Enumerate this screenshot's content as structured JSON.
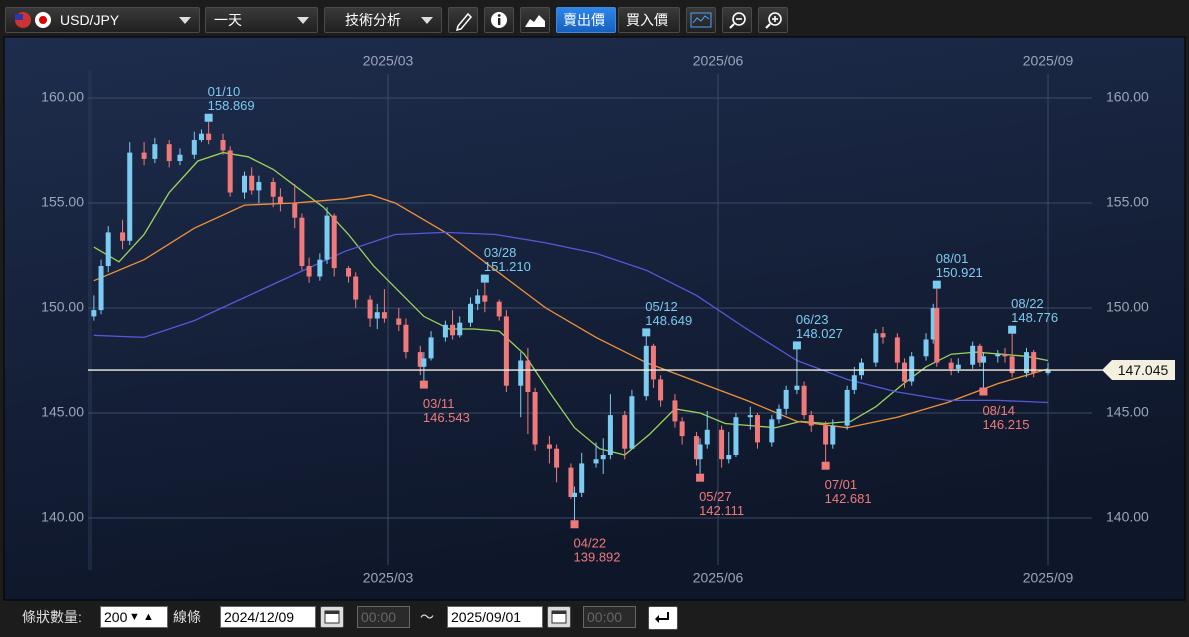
{
  "toolbar": {
    "symbol": "USD/JPY",
    "period": "一天",
    "analysis": "技術分析",
    "sell": "賣出價",
    "buy": "買入價"
  },
  "chart_data": {
    "type": "candlestick",
    "x": [
      "2024/12/09",
      "2024/12/11",
      "2024/12/13",
      "2024/12/17",
      "2024/12/19",
      "2024/12/23",
      "2024/12/26",
      "2024/12/30",
      "2025/01/02",
      "2025/01/06",
      "2025/01/08",
      "2025/01/10",
      "2025/01/14",
      "2025/01/16",
      "2025/01/20",
      "2025/01/22",
      "2025/01/24",
      "2025/01/28",
      "2025/01/30",
      "2025/02/03",
      "2025/02/05",
      "2025/02/07",
      "2025/02/10",
      "2025/02/12",
      "2025/02/14",
      "2025/02/18",
      "2025/02/20",
      "2025/02/24",
      "2025/02/26",
      "2025/02/28",
      "2025/03/04",
      "2025/03/06",
      "2025/03/10",
      "2025/03/11",
      "2025/03/13",
      "2025/03/17",
      "2025/03/19",
      "2025/03/21",
      "2025/03/24",
      "2025/03/26",
      "2025/03/28",
      "2025/04/01",
      "2025/04/03",
      "2025/04/07",
      "2025/04/09",
      "2025/04/11",
      "2025/04/15",
      "2025/04/17",
      "2025/04/21",
      "2025/04/22",
      "2025/04/24",
      "2025/04/28",
      "2025/04/30",
      "2025/05/02",
      "2025/05/06",
      "2025/05/08",
      "2025/05/12",
      "2025/05/14",
      "2025/05/16",
      "2025/05/20",
      "2025/05/22",
      "2025/05/26",
      "2025/05/27",
      "2025/05/29",
      "2025/06/02",
      "2025/06/04",
      "2025/06/06",
      "2025/06/10",
      "2025/06/12",
      "2025/06/16",
      "2025/06/18",
      "2025/06/20",
      "2025/06/23",
      "2025/06/25",
      "2025/06/27",
      "2025/07/01",
      "2025/07/03",
      "2025/07/07",
      "2025/07/09",
      "2025/07/11",
      "2025/07/15",
      "2025/07/17",
      "2025/07/21",
      "2025/07/23",
      "2025/07/25",
      "2025/07/29",
      "2025/07/31",
      "2025/08/01",
      "2025/08/05",
      "2025/08/07",
      "2025/08/11",
      "2025/08/13",
      "2025/08/14",
      "2025/08/18",
      "2025/08/20",
      "2025/08/22",
      "2025/08/26",
      "2025/08/28",
      "2025/09/01"
    ],
    "open": [
      149.6,
      149.9,
      152.0,
      153.6,
      153.2,
      157.4,
      157.1,
      157.8,
      157.0,
      157.3,
      158.0,
      158.3,
      158.0,
      157.5,
      155.5,
      156.3,
      155.6,
      156.0,
      155.3,
      155.0,
      154.3,
      152.0,
      151.5,
      152.3,
      154.4,
      151.9,
      151.5,
      150.4,
      149.5,
      149.8,
      149.5,
      149.2,
      147.9,
      147.2,
      147.6,
      148.6,
      149.2,
      148.7,
      149.3,
      150.2,
      150.6,
      150.3,
      149.6,
      146.3,
      147.5,
      146.0,
      143.5,
      143.3,
      142.4,
      141.0,
      141.2,
      142.6,
      142.8,
      143.0,
      144.9,
      143.3,
      145.8,
      148.2,
      146.6,
      145.6,
      144.6,
      143.9,
      142.8,
      143.5,
      144.2,
      142.8,
      143.0,
      144.8,
      144.9,
      143.6,
      144.7,
      145.2,
      146.1,
      146.3,
      144.9,
      144.4,
      143.5,
      144.4,
      146.1,
      146.8,
      147.4,
      148.8,
      148.6,
      147.4,
      146.5,
      147.7,
      148.5,
      150.0,
      147.4,
      147.1,
      147.3,
      148.2,
      147.4,
      147.7,
      147.8,
      147.7,
      146.9,
      147.9,
      146.9
    ],
    "high": [
      150.6,
      152.3,
      153.9,
      154.2,
      157.9,
      157.9,
      158.1,
      158.0,
      157.6,
      158.4,
      158.5,
      158.869,
      158.3,
      157.7,
      156.5,
      156.7,
      156.3,
      156.2,
      155.7,
      155.9,
      154.5,
      152.4,
      152.6,
      154.8,
      154.5,
      152.0,
      151.7,
      150.6,
      150.2,
      150.9,
      150.0,
      149.5,
      148.2,
      147.9,
      148.9,
      149.4,
      149.9,
      149.6,
      150.5,
      150.9,
      151.21,
      150.4,
      149.9,
      147.9,
      148.1,
      146.2,
      143.9,
      143.5,
      142.6,
      141.5,
      143.1,
      143.6,
      143.8,
      145.9,
      145.1,
      146.1,
      148.649,
      148.3,
      146.8,
      145.9,
      144.8,
      144.1,
      143.8,
      145.1,
      144.4,
      144.1,
      145.0,
      145.3,
      145.0,
      144.9,
      145.4,
      146.3,
      148.027,
      146.5,
      145.1,
      144.6,
      144.7,
      146.3,
      147.2,
      147.6,
      149.0,
      149.1,
      148.8,
      147.6,
      147.9,
      148.8,
      150.2,
      150.921,
      147.6,
      147.6,
      148.4,
      148.3,
      147.9,
      148.0,
      148.1,
      148.776,
      148.1,
      148.0,
      147.4
    ],
    "low": [
      149.4,
      149.7,
      151.7,
      152.8,
      153.0,
      156.8,
      156.9,
      156.7,
      156.8,
      157.1,
      157.9,
      157.8,
      157.3,
      155.3,
      155.2,
      155.4,
      155.0,
      154.8,
      154.6,
      153.8,
      151.8,
      151.2,
      151.3,
      152.1,
      151.5,
      151.2,
      150.0,
      149.1,
      149.0,
      149.3,
      148.9,
      147.6,
      146.8,
      146.543,
      147.5,
      148.4,
      148.5,
      148.6,
      149.1,
      149.9,
      149.8,
      149.4,
      146.0,
      144.8,
      144.0,
      143.2,
      142.6,
      141.7,
      140.9,
      139.892,
      141.0,
      142.4,
      142.1,
      142.8,
      142.8,
      143.3,
      145.6,
      146.2,
      145.3,
      144.3,
      143.5,
      142.5,
      142.111,
      143.3,
      142.4,
      142.6,
      142.9,
      144.2,
      143.3,
      143.4,
      144.5,
      144.9,
      145.9,
      144.7,
      144.1,
      142.681,
      143.3,
      144.2,
      145.9,
      146.6,
      147.2,
      148.3,
      147.1,
      146.2,
      146.3,
      147.5,
      148.3,
      147.2,
      146.8,
      146.9,
      147.1,
      147.2,
      146.215,
      147.4,
      147.4,
      146.7,
      146.7,
      146.7,
      146.8
    ],
    "close": [
      149.9,
      152.0,
      153.6,
      153.2,
      157.4,
      157.1,
      157.8,
      157.0,
      157.3,
      158.0,
      158.3,
      158.0,
      157.5,
      155.5,
      156.3,
      155.6,
      156.0,
      155.3,
      155.0,
      154.3,
      152.0,
      151.5,
      152.3,
      154.4,
      151.9,
      151.5,
      150.4,
      149.5,
      149.8,
      149.5,
      149.2,
      147.9,
      147.2,
      147.6,
      148.6,
      149.2,
      148.7,
      149.3,
      150.2,
      150.6,
      150.3,
      149.6,
      146.3,
      147.5,
      146.0,
      143.5,
      143.3,
      142.4,
      141.0,
      141.2,
      142.6,
      142.8,
      143.0,
      144.9,
      143.3,
      145.8,
      148.2,
      146.6,
      145.6,
      144.6,
      143.9,
      142.8,
      143.5,
      144.2,
      142.8,
      143.0,
      144.8,
      144.9,
      143.6,
      144.7,
      145.2,
      146.1,
      146.3,
      144.9,
      144.4,
      143.5,
      144.4,
      146.1,
      146.8,
      147.4,
      148.8,
      148.6,
      147.4,
      146.5,
      147.7,
      148.5,
      150.0,
      147.4,
      147.1,
      147.3,
      148.2,
      147.4,
      147.7,
      147.8,
      147.7,
      146.9,
      147.9,
      146.9,
      147.045
    ],
    "up_color": "#7ccbf0",
    "down_color": "#f07a7a",
    "ylim": [
      137.5,
      161.5
    ],
    "yticks": [
      {
        "value": 140,
        "label": "140.00"
      },
      {
        "value": 145,
        "label": "145.00"
      },
      {
        "value": 150,
        "label": "150.00"
      },
      {
        "value": 155,
        "label": "155.00"
      },
      {
        "value": 160,
        "label": "160.00"
      }
    ],
    "xticks": [
      {
        "value": "2025/03/01",
        "label": "2025/03"
      },
      {
        "value": "2025/06/01",
        "label": "2025/06"
      },
      {
        "value": "2025/09/01",
        "label": "2025/09"
      }
    ],
    "grid": true,
    "moving_averages": [
      {
        "color": "#9bd35a",
        "x": [
          "2024/12/09",
          "2024/12/16",
          "2024/12/23",
          "2024/12/30",
          "2025/01/07",
          "2025/01/14",
          "2025/01/21",
          "2025/01/28",
          "2025/02/04",
          "2025/02/11",
          "2025/02/18",
          "2025/02/25",
          "2025/03/04",
          "2025/03/11",
          "2025/03/18",
          "2025/03/25",
          "2025/04/01",
          "2025/04/08",
          "2025/04/15",
          "2025/04/22",
          "2025/04/29",
          "2025/05/06",
          "2025/05/13",
          "2025/05/20",
          "2025/05/27",
          "2025/06/03",
          "2025/06/10",
          "2025/06/17",
          "2025/06/24",
          "2025/07/01",
          "2025/07/08",
          "2025/07/15",
          "2025/07/22",
          "2025/07/29",
          "2025/08/05",
          "2025/08/12",
          "2025/08/19",
          "2025/08/26",
          "2025/09/01"
        ],
        "values": [
          152.9,
          152.2,
          153.5,
          155.5,
          157.0,
          157.4,
          157.2,
          156.6,
          155.7,
          154.8,
          153.5,
          152.0,
          150.8,
          149.6,
          149.0,
          149.0,
          148.9,
          147.8,
          146.0,
          144.3,
          143.3,
          143.0,
          144.0,
          145.2,
          145.0,
          144.5,
          144.4,
          144.3,
          144.6,
          144.5,
          144.6,
          145.3,
          146.3,
          147.2,
          147.8,
          147.9,
          147.8,
          147.7,
          147.5
        ]
      },
      {
        "color": "#f0923a",
        "x": [
          "2024/12/09",
          "2024/12/23",
          "2025/01/06",
          "2025/01/20",
          "2025/02/03",
          "2025/02/17",
          "2025/02/24",
          "2025/03/03",
          "2025/03/17",
          "2025/03/31",
          "2025/04/14",
          "2025/04/28",
          "2025/05/12",
          "2025/05/26",
          "2025/06/09",
          "2025/06/23",
          "2025/07/07",
          "2025/07/21",
          "2025/08/04",
          "2025/08/18",
          "2025/09/01"
        ],
        "values": [
          151.3,
          152.3,
          153.8,
          154.9,
          155.0,
          155.2,
          155.4,
          155.0,
          153.6,
          151.8,
          150.0,
          148.6,
          147.4,
          146.5,
          145.6,
          144.6,
          144.3,
          144.8,
          145.5,
          146.4,
          147.1
        ]
      },
      {
        "color": "#5757d8",
        "x": [
          "2024/12/09",
          "2024/12/23",
          "2025/01/06",
          "2025/01/20",
          "2025/02/03",
          "2025/02/17",
          "2025/03/03",
          "2025/03/17",
          "2025/03/31",
          "2025/04/14",
          "2025/04/28",
          "2025/05/12",
          "2025/05/26",
          "2025/06/09",
          "2025/06/23",
          "2025/07/07",
          "2025/07/21",
          "2025/08/04",
          "2025/08/18",
          "2025/09/01"
        ],
        "values": [
          148.7,
          148.6,
          149.4,
          150.5,
          151.6,
          152.7,
          153.5,
          153.6,
          153.5,
          153.1,
          152.6,
          151.8,
          150.6,
          149.0,
          147.5,
          146.6,
          146.0,
          145.6,
          145.6,
          145.5
        ]
      }
    ],
    "annotations": [
      {
        "x": "2025/01/10",
        "label": "01/10",
        "value": 158.869,
        "kind": "high"
      },
      {
        "x": "2025/03/11",
        "label": "03/11",
        "value": 146.543,
        "kind": "low"
      },
      {
        "x": "2025/03/28",
        "label": "03/28",
        "value": 151.21,
        "value_label": "151.210",
        "kind": "high"
      },
      {
        "x": "2025/04/22",
        "label": "04/22",
        "value": 139.892,
        "kind": "low"
      },
      {
        "x": "2025/05/12",
        "label": "05/12",
        "value": 148.649,
        "kind": "high"
      },
      {
        "x": "2025/05/27",
        "label": "05/27",
        "value": 142.111,
        "kind": "low"
      },
      {
        "x": "2025/06/23",
        "label": "06/23",
        "value": 148.027,
        "kind": "high"
      },
      {
        "x": "2025/07/01",
        "label": "07/01",
        "value": 142.681,
        "kind": "low"
      },
      {
        "x": "2025/08/01",
        "label": "08/01",
        "value": 150.921,
        "kind": "high"
      },
      {
        "x": "2025/08/14",
        "label": "08/14",
        "value": 146.215,
        "kind": "low"
      },
      {
        "x": "2025/08/22",
        "label": "08/22",
        "value": 148.776,
        "kind": "high"
      }
    ],
    "last_price": 147.045
  },
  "footer": {
    "bar_count_label": "條狀數量:",
    "bar_count": 200,
    "line_label": "線條",
    "start_date": "2024/12/09",
    "start_time": "00:00",
    "separator": "～",
    "end_date": "2025/09/01",
    "end_time": "00:00"
  }
}
